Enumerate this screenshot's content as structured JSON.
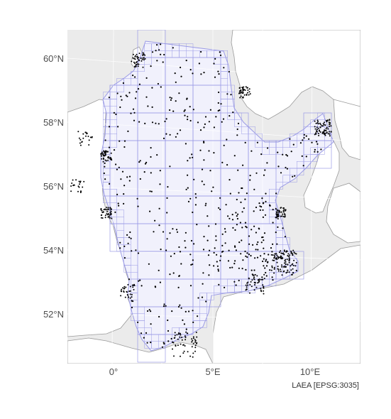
{
  "map": {
    "type": "map",
    "title": "",
    "projection_label": "LAEA [EPSG:3035]",
    "lat_ticks": [
      "60°N",
      "58°N",
      "56°N",
      "54°N",
      "52°N"
    ],
    "lon_ticks": [
      "0°",
      "5°E",
      "10°E"
    ],
    "colors": {
      "panel_background": "#ebebeb",
      "land": "#ffffff",
      "coastline": "#9a9a9a",
      "study_area_fill": "#f1f1fc",
      "grid_cells": "#9b9be6",
      "graticule": "#ffffff",
      "points": "#000000"
    },
    "legend": "none"
  }
}
